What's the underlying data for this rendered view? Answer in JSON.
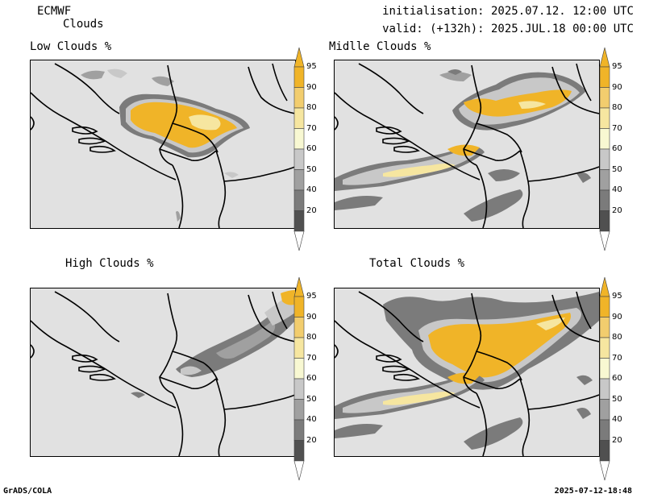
{
  "header": {
    "model": "ECMWF",
    "product": "Clouds",
    "init_line": "initialisation: 2025.07.12. 12:00 UTC",
    "valid_line": "valid: (+132h): 2025.JUL.18 00:00 UTC"
  },
  "panels": [
    {
      "title": "Low Clouds %"
    },
    {
      "title": "Midlle Clouds %"
    },
    {
      "title": "High Clouds %"
    },
    {
      "title": "Total Clouds %"
    }
  ],
  "colorbar": {
    "labels": [
      "95",
      "90",
      "80",
      "70",
      "60",
      "50",
      "40",
      "20"
    ],
    "colors": [
      "#f0b428",
      "#f2cd6e",
      "#f6e6a0",
      "#f8f8d2",
      "#c8c8c8",
      "#a0a0a0",
      "#7b7b7b",
      "#505050"
    ],
    "arrow_top_color": "#f0b428",
    "arrow_bottom_color": "#ffffff"
  },
  "footer": {
    "left": "GrADS/COLA",
    "right": "2025-07-12-18:48"
  }
}
